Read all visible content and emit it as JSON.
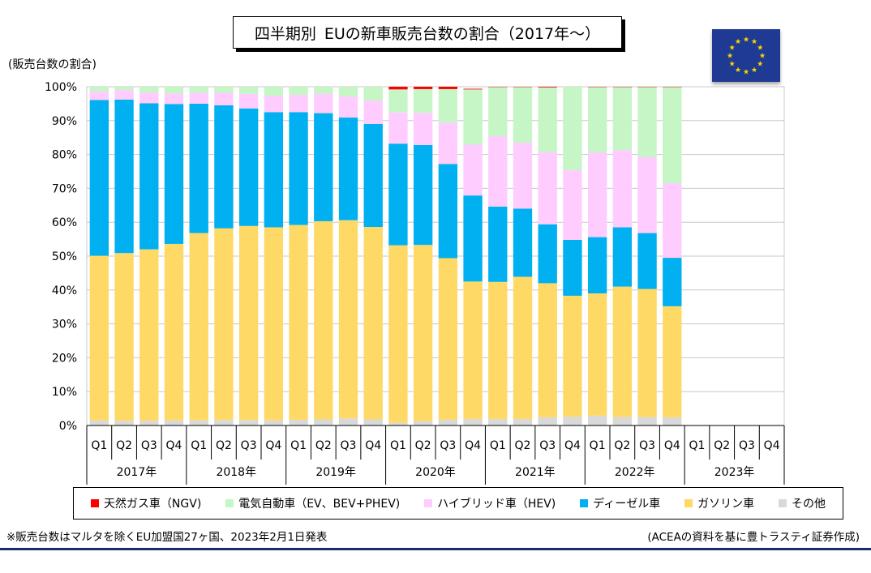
{
  "title_main": "四半期別",
  "title_rest": "EUの新車販売台数の割合（2017年～）",
  "y_unit_label": "(販売台数の割合)",
  "footnote": "※販売台数はマルタを除くEU加盟国27ヶ国、2023年2月1日発表",
  "source": "(ACEAの資料を基に豊トラスティ証券作成)",
  "flag_icon": "eu-flag-icon",
  "chart_data": {
    "type": "bar",
    "stacked": true,
    "ylim": [
      0,
      100
    ],
    "yticks": [
      "0%",
      "10%",
      "20%",
      "30%",
      "40%",
      "50%",
      "60%",
      "70%",
      "80%",
      "90%",
      "100%"
    ],
    "categories": [
      "Q1",
      "Q2",
      "Q3",
      "Q4",
      "Q1",
      "Q2",
      "Q3",
      "Q4",
      "Q1",
      "Q2",
      "Q3",
      "Q4",
      "Q1",
      "Q2",
      "Q3",
      "Q4",
      "Q1",
      "Q2",
      "Q3",
      "Q4",
      "Q1",
      "Q2",
      "Q3",
      "Q4",
      "Q1",
      "Q2",
      "Q3",
      "Q4"
    ],
    "years": [
      "2017年",
      "2018年",
      "2019年",
      "2020年",
      "2021年",
      "2022年",
      "2023年"
    ],
    "grid": true,
    "legend_position": "bottom",
    "series": [
      {
        "name": "その他",
        "color": "#d9d9d9",
        "values": [
          1.5,
          1.4,
          1.4,
          1.5,
          1.5,
          1.6,
          1.6,
          1.5,
          1.7,
          1.8,
          2.1,
          1.8,
          0.8,
          1.3,
          1.7,
          1.9,
          1.9,
          1.9,
          2.4,
          2.6,
          2.9,
          2.5,
          2.5,
          2.4,
          null,
          null,
          null,
          null
        ]
      },
      {
        "name": "ガソリン車",
        "color": "#ffd966",
        "values": [
          48.6,
          49.5,
          50.6,
          52.1,
          55.3,
          56.6,
          57.3,
          57.0,
          57.5,
          58.5,
          58.5,
          56.8,
          52.4,
          52.0,
          47.7,
          40.6,
          40.5,
          42.0,
          39.6,
          35.7,
          36.1,
          38.5,
          37.8,
          32.8,
          null,
          null,
          null,
          null
        ]
      },
      {
        "name": "ディーゼル車",
        "color": "#00b0f0",
        "values": [
          46.0,
          45.3,
          43.1,
          41.3,
          38.2,
          36.3,
          34.7,
          34.0,
          33.3,
          31.9,
          30.3,
          30.4,
          30.0,
          29.5,
          27.8,
          25.4,
          22.2,
          20.1,
          17.4,
          16.5,
          16.6,
          17.5,
          16.5,
          14.3,
          null,
          null,
          null,
          null
        ]
      },
      {
        "name": "ハイブリッド車（HEV)",
        "color": "#ffccff",
        "values": [
          2.5,
          2.8,
          3.2,
          3.1,
          3.2,
          3.7,
          4.3,
          4.8,
          5.1,
          5.7,
          6.2,
          6.9,
          9.2,
          9.5,
          12.2,
          15.0,
          20.8,
          19.5,
          21.3,
          20.6,
          25.0,
          22.8,
          22.4,
          22.0,
          null,
          null,
          null,
          null
        ]
      },
      {
        "name": "電気自動車（EV、BEV+PHEV)",
        "color": "#c6f5c6",
        "values": [
          1.4,
          1.0,
          1.7,
          2.0,
          1.8,
          1.8,
          2.1,
          2.7,
          2.4,
          2.1,
          2.9,
          4.1,
          6.8,
          7.0,
          9.9,
          16.3,
          14.5,
          16.4,
          19.1,
          24.6,
          19.3,
          18.6,
          20.7,
          28.4,
          null,
          null,
          null,
          null
        ]
      },
      {
        "name": "天然ガス車（NGV)",
        "color": "#ff0000",
        "values": [
          0.0,
          0.0,
          0.0,
          0.0,
          0.0,
          0.0,
          0.0,
          0.0,
          0.0,
          0.0,
          0.0,
          0.0,
          0.8,
          0.7,
          0.7,
          0.2,
          0.1,
          0.1,
          0.2,
          0.0,
          0.1,
          0.1,
          0.1,
          0.1,
          null,
          null,
          null,
          null
        ]
      }
    ],
    "legend_order": [
      "天然ガス車（NGV)",
      "電気自動車（EV、BEV+PHEV)",
      "ハイブリッド車（HEV)",
      "ディーゼル車",
      "ガソリン車",
      "その他"
    ]
  }
}
